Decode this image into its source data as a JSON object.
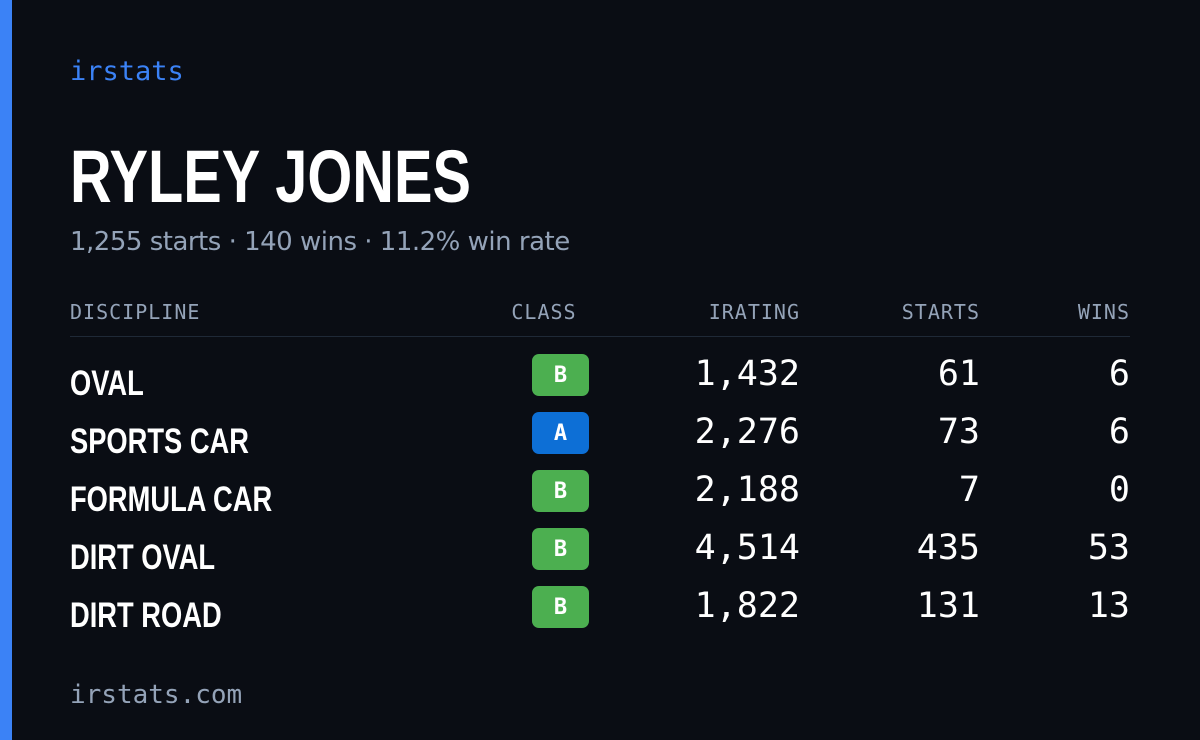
{
  "brand": "irstats",
  "driver": {
    "name": "RYLEY JONES",
    "summary": "1,255 starts · 140 wins · 11.2% win rate"
  },
  "table": {
    "headers": {
      "discipline": "DISCIPLINE",
      "class": "CLASS",
      "irating": "IRATING",
      "starts": "STARTS",
      "wins": "WINS"
    },
    "rows": [
      {
        "discipline": "OVAL",
        "class": "B",
        "class_color": "#4caf50",
        "irating": "1,432",
        "starts": "61",
        "wins": "6"
      },
      {
        "discipline": "SPORTS CAR",
        "class": "A",
        "class_color": "#0d6fd6",
        "irating": "2,276",
        "starts": "73",
        "wins": "6"
      },
      {
        "discipline": "FORMULA CAR",
        "class": "B",
        "class_color": "#4caf50",
        "irating": "2,188",
        "starts": "7",
        "wins": "0"
      },
      {
        "discipline": "DIRT OVAL",
        "class": "B",
        "class_color": "#4caf50",
        "irating": "4,514",
        "starts": "435",
        "wins": "53"
      },
      {
        "discipline": "DIRT ROAD",
        "class": "B",
        "class_color": "#4caf50",
        "irating": "1,822",
        "starts": "131",
        "wins": "13"
      }
    ]
  },
  "footer": "irstats.com",
  "colors": {
    "accent": "#3b82f6",
    "background": "#0a0d14",
    "muted": "#94a3b8"
  }
}
